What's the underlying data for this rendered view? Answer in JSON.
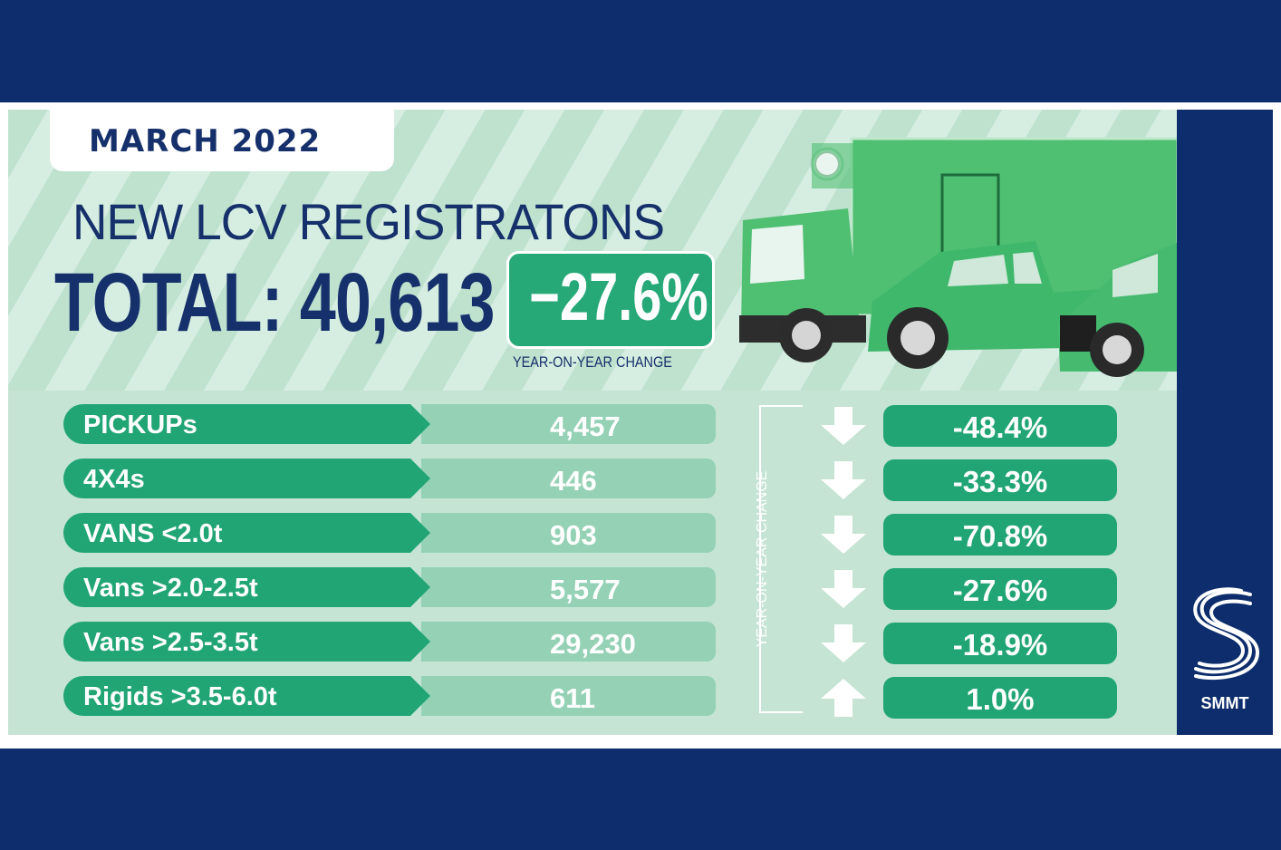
{
  "header": {
    "date": "MARCH 2022",
    "title": "NEW LCV REGISTRATONS",
    "total": "TOTAL: 40,613",
    "yoy_value": "−27.6%",
    "yoy_label": "YEAR-ON-YEAR CHANGE"
  },
  "bracket_label": "YEAR-ON-YEAR CHANGE",
  "rows": [
    {
      "label": "PICKUPs",
      "value": "4,457",
      "change": "-48.4%",
      "direction": "down"
    },
    {
      "label": "4X4s",
      "value": "446",
      "change": "-33.3%",
      "direction": "down"
    },
    {
      "label": "VANS <2.0t",
      "value": "903",
      "change": "-70.8%",
      "direction": "down"
    },
    {
      "label": "Vans >2.0-2.5t",
      "value": "5,577",
      "change": "-27.6%",
      "direction": "down"
    },
    {
      "label": "Vans >2.5-3.5t",
      "value": "29,230",
      "change": "-18.9%",
      "direction": "down"
    },
    {
      "label": "Rigids >3.5-6.0t",
      "value": "611",
      "change": "1.0%",
      "direction": "up"
    }
  ],
  "logo": {
    "text": "SMMT"
  },
  "colors": {
    "navy": "#0d2d6c",
    "green": "#21a574",
    "light_green": "#94d1b5",
    "background": "#c8e6d6"
  }
}
